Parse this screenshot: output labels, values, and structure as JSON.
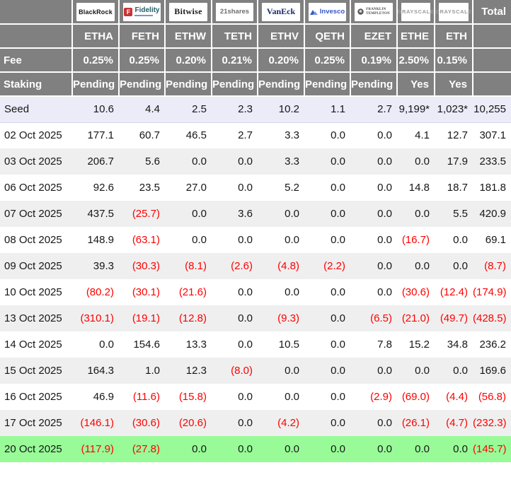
{
  "colors": {
    "header_bg": "#808080",
    "header_text": "#ffffff",
    "negative_value": "#ff0000",
    "value_text": "#161616",
    "seed_row_bg": "#ebecf8",
    "alt_row_bg": "#efefef",
    "row_bg": "#ffffff",
    "highlight_row_bg": "#98fb98",
    "fidelity_badge": "#c83232",
    "invesco_blue": "#3a57c4",
    "vaneck_navy": "#1a2a6e"
  },
  "chart_data": {
    "type": "table",
    "providers": [
      {
        "id": "blackrock",
        "label": "BlackRock"
      },
      {
        "id": "fidelity",
        "label": "Fidelity",
        "badge": "F"
      },
      {
        "id": "bitwise",
        "label": "Bitwise"
      },
      {
        "id": "21shares",
        "label": "21shares"
      },
      {
        "id": "vaneck",
        "label": "VanEck"
      },
      {
        "id": "invesco",
        "label": "Invesco"
      },
      {
        "id": "franklin",
        "label": "FRANKLIN TEMPLETON",
        "lines": [
          "FRANKLIN",
          "TEMPLETON"
        ]
      },
      {
        "id": "grayscale",
        "label": "GRAYSCALE"
      },
      {
        "id": "grayscale-mini",
        "label": "GRAYSCALE"
      }
    ],
    "total_label": "Total",
    "tickers": [
      "ETHA",
      "FETH",
      "ETHW",
      "TETH",
      "ETHV",
      "QETH",
      "EZET",
      "ETHE",
      "ETH"
    ],
    "fee": {
      "label": "Fee",
      "values": [
        "0.25%",
        "0.25%",
        "0.20%",
        "0.21%",
        "0.20%",
        "0.25%",
        "0.19%",
        "2.50%",
        "0.15%"
      ]
    },
    "staking": {
      "label": "Staking",
      "values": [
        "Pending",
        "Pending",
        "Pending",
        "Pending",
        "Pending",
        "Pending",
        "Pending",
        "Yes",
        "Yes"
      ]
    },
    "seed": {
      "label": "Seed",
      "values": [
        "10.6",
        "4.4",
        "2.5",
        "2.3",
        "10.2",
        "1.1",
        "2.7",
        "9,199*",
        "1,023*"
      ],
      "total": "10,255"
    },
    "rows": [
      {
        "date": "02 Oct 2025",
        "values": [
          "177.1",
          "60.7",
          "46.5",
          "2.7",
          "3.3",
          "0.0",
          "0.0",
          "4.1",
          "12.7"
        ],
        "total": "307.1"
      },
      {
        "date": "03 Oct 2025",
        "values": [
          "206.7",
          "5.6",
          "0.0",
          "0.0",
          "3.3",
          "0.0",
          "0.0",
          "0.0",
          "17.9"
        ],
        "total": "233.5"
      },
      {
        "date": "06 Oct 2025",
        "values": [
          "92.6",
          "23.5",
          "27.0",
          "0.0",
          "5.2",
          "0.0",
          "0.0",
          "14.8",
          "18.7"
        ],
        "total": "181.8"
      },
      {
        "date": "07 Oct 2025",
        "values": [
          "437.5",
          "(25.7)",
          "0.0",
          "3.6",
          "0.0",
          "0.0",
          "0.0",
          "0.0",
          "5.5"
        ],
        "total": "420.9"
      },
      {
        "date": "08 Oct 2025",
        "values": [
          "148.9",
          "(63.1)",
          "0.0",
          "0.0",
          "0.0",
          "0.0",
          "0.0",
          "(16.7)",
          "0.0"
        ],
        "total": "69.1"
      },
      {
        "date": "09 Oct 2025",
        "values": [
          "39.3",
          "(30.3)",
          "(8.1)",
          "(2.6)",
          "(4.8)",
          "(2.2)",
          "0.0",
          "0.0",
          "0.0"
        ],
        "total": "(8.7)"
      },
      {
        "date": "10 Oct 2025",
        "values": [
          "(80.2)",
          "(30.1)",
          "(21.6)",
          "0.0",
          "0.0",
          "0.0",
          "0.0",
          "(30.6)",
          "(12.4)"
        ],
        "total": "(174.9)"
      },
      {
        "date": "13 Oct 2025",
        "values": [
          "(310.1)",
          "(19.1)",
          "(12.8)",
          "0.0",
          "(9.3)",
          "0.0",
          "(6.5)",
          "(21.0)",
          "(49.7)"
        ],
        "total": "(428.5)"
      },
      {
        "date": "14 Oct 2025",
        "values": [
          "0.0",
          "154.6",
          "13.3",
          "0.0",
          "10.5",
          "0.0",
          "7.8",
          "15.2",
          "34.8"
        ],
        "total": "236.2"
      },
      {
        "date": "15 Oct 2025",
        "values": [
          "164.3",
          "1.0",
          "12.3",
          "(8.0)",
          "0.0",
          "0.0",
          "0.0",
          "0.0",
          "0.0"
        ],
        "total": "169.6"
      },
      {
        "date": "16 Oct 2025",
        "values": [
          "46.9",
          "(11.6)",
          "(15.8)",
          "0.0",
          "0.0",
          "0.0",
          "(2.9)",
          "(69.0)",
          "(4.4)"
        ],
        "total": "(56.8)"
      },
      {
        "date": "17 Oct 2025",
        "values": [
          "(146.1)",
          "(30.6)",
          "(20.6)",
          "0.0",
          "(4.2)",
          "0.0",
          "0.0",
          "(26.1)",
          "(4.7)"
        ],
        "total": "(232.3)"
      },
      {
        "date": "20 Oct 2025",
        "values": [
          "(117.9)",
          "(27.8)",
          "0.0",
          "0.0",
          "0.0",
          "0.0",
          "0.0",
          "0.0",
          "0.0"
        ],
        "total": "(145.7)",
        "highlight": true
      }
    ]
  }
}
